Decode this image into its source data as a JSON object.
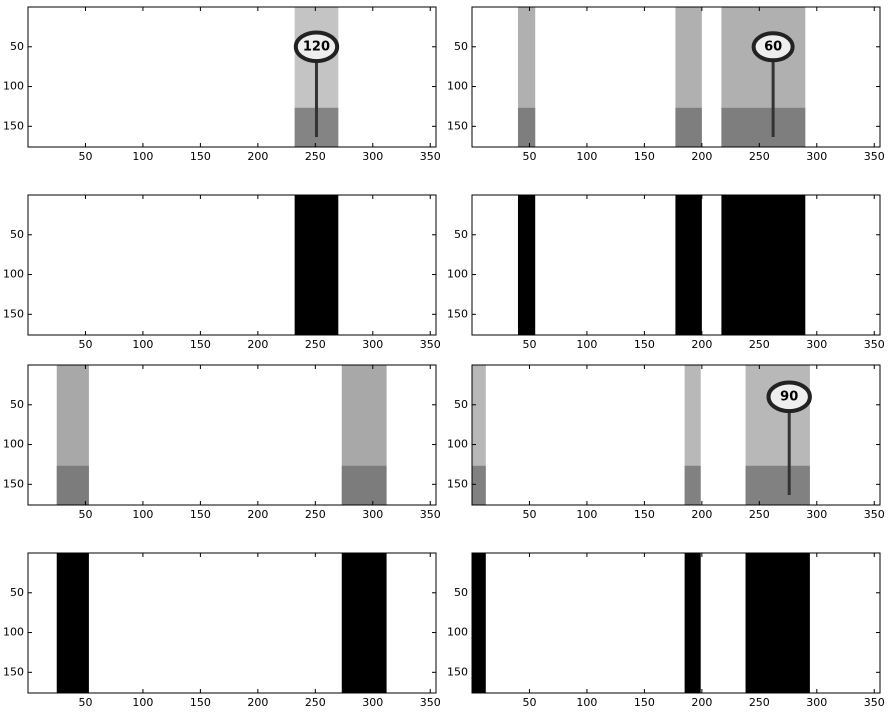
{
  "chart_data": [
    {
      "type": "image",
      "xlim": [
        0,
        355
      ],
      "ylim": [
        0,
        176
      ],
      "y_reversed": true,
      "xticks": [
        50,
        100,
        150,
        200,
        250,
        300,
        350
      ],
      "yticks": [
        50,
        100,
        150
      ],
      "color": "#c4c4c4",
      "strips": [
        [
          232,
          270
        ]
      ],
      "signs": [
        {
          "label": "120",
          "x": 251,
          "y": 50,
          "r": 18
        }
      ]
    },
    {
      "type": "image",
      "xlim": [
        0,
        355
      ],
      "ylim": [
        0,
        176
      ],
      "y_reversed": true,
      "xticks": [
        50,
        100,
        150,
        200,
        250,
        300,
        350
      ],
      "yticks": [
        50,
        100,
        150
      ],
      "color": "#b0b0b0",
      "strips": [
        [
          40,
          55
        ],
        [
          177,
          200
        ],
        [
          217,
          290
        ]
      ],
      "signs": [
        {
          "label": "60",
          "x": 262,
          "y": 50,
          "r": 17
        }
      ]
    },
    {
      "type": "image",
      "xlim": [
        0,
        355
      ],
      "ylim": [
        0,
        176
      ],
      "y_reversed": true,
      "xticks": [
        50,
        100,
        150,
        200,
        250,
        300,
        350
      ],
      "yticks": [
        50,
        100,
        150
      ],
      "color": "#000000",
      "strips": [
        [
          232,
          270
        ]
      ]
    },
    {
      "type": "image",
      "xlim": [
        0,
        355
      ],
      "ylim": [
        0,
        176
      ],
      "y_reversed": true,
      "xticks": [
        50,
        100,
        150,
        200,
        250,
        300,
        350
      ],
      "yticks": [
        50,
        100,
        150
      ],
      "color": "#000000",
      "strips": [
        [
          40,
          55
        ],
        [
          177,
          200
        ],
        [
          217,
          290
        ]
      ]
    },
    {
      "type": "image",
      "xlim": [
        0,
        355
      ],
      "ylim": [
        0,
        176
      ],
      "y_reversed": true,
      "xticks": [
        50,
        100,
        150,
        200,
        250,
        300,
        350
      ],
      "yticks": [
        50,
        100,
        150
      ],
      "color": "#a8a8a8",
      "strips": [
        [
          25,
          53
        ],
        [
          273,
          312
        ]
      ]
    },
    {
      "type": "image",
      "xlim": [
        0,
        355
      ],
      "ylim": [
        0,
        176
      ],
      "y_reversed": true,
      "xticks": [
        50,
        100,
        150,
        200,
        250,
        300,
        350
      ],
      "yticks": [
        50,
        100,
        150
      ],
      "color": "#b8b8b8",
      "strips": [
        [
          0,
          12
        ],
        [
          185,
          199
        ],
        [
          238,
          294
        ]
      ],
      "signs": [
        {
          "label": "90",
          "x": 276,
          "y": 40,
          "r": 18
        }
      ]
    },
    {
      "type": "image",
      "xlim": [
        0,
        355
      ],
      "ylim": [
        0,
        176
      ],
      "y_reversed": true,
      "xticks": [
        50,
        100,
        150,
        200,
        250,
        300,
        350
      ],
      "yticks": [
        50,
        100,
        150
      ],
      "color": "#000000",
      "strips": [
        [
          25,
          53
        ],
        [
          273,
          312
        ]
      ]
    },
    {
      "type": "image",
      "xlim": [
        0,
        355
      ],
      "ylim": [
        0,
        176
      ],
      "y_reversed": true,
      "xticks": [
        50,
        100,
        150,
        200,
        250,
        300,
        350
      ],
      "yticks": [
        50,
        100,
        150
      ],
      "color": "#000000",
      "strips": [
        [
          0,
          12
        ],
        [
          185,
          199
        ],
        [
          238,
          294
        ]
      ]
    }
  ]
}
